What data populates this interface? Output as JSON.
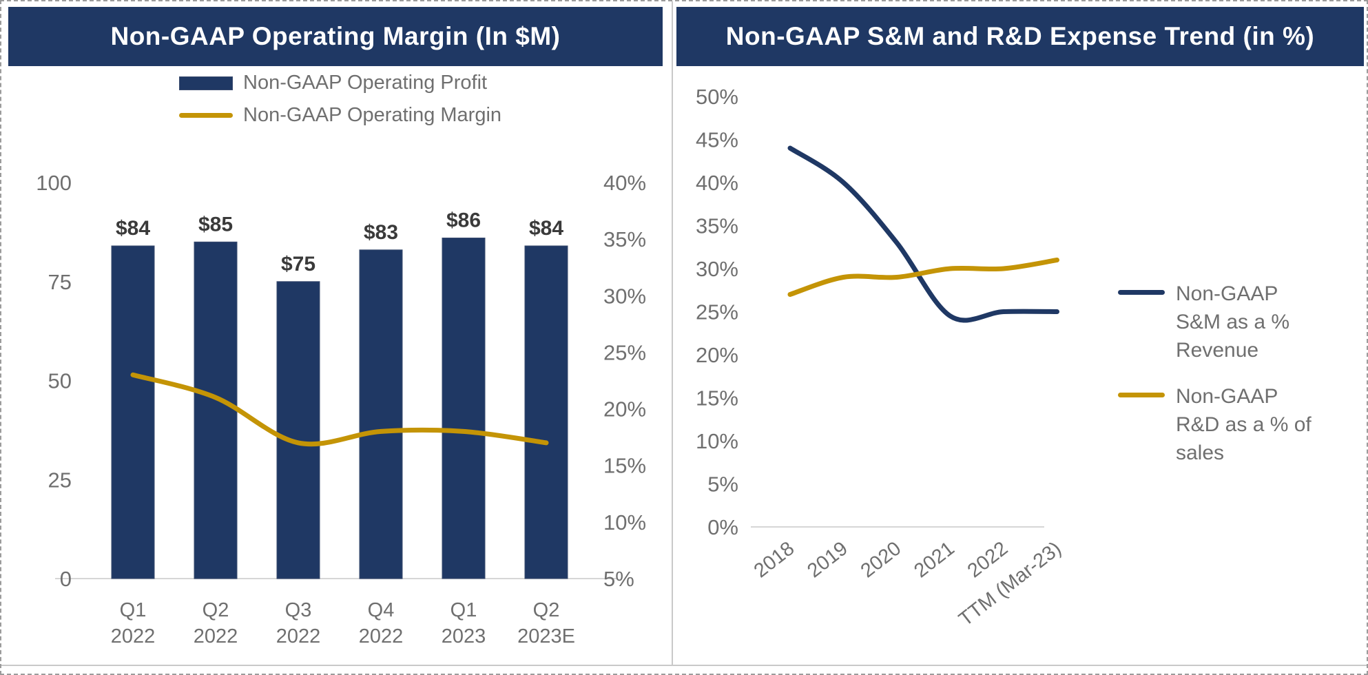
{
  "slide": {
    "left_panel": {
      "title": "Non-GAAP Operating Margin (In $M)",
      "legend": [
        {
          "swatch": "bar",
          "label": "Non-GAAP Operating Profit"
        },
        {
          "swatch": "line",
          "label": "Non-GAAP Operating Margin"
        }
      ]
    },
    "right_panel": {
      "title": "Non-GAAP S&M and R&D Expense Trend (in %)",
      "legend": [
        {
          "swatch": "line",
          "label": "Non-GAAP\nS&M as a %\nRevenue"
        },
        {
          "swatch": "line",
          "label": "Non-GAAP\nR&D as a % of\nsales"
        }
      ]
    }
  },
  "colors": {
    "navy": "#1F3864",
    "gold": "#C49406",
    "axis_text": "#6F6F6F",
    "data_label": "#3A3A3A",
    "axis_line": "#D6D6D6",
    "panel_border": "#C9C9C9",
    "title_text": "#FFFFFF"
  },
  "chart_data": [
    {
      "type": "bar",
      "title": "Non-GAAP Operating Margin (In $M)",
      "categories": [
        [
          "Q1",
          "2022"
        ],
        [
          "Q2",
          "2022"
        ],
        [
          "Q3",
          "2022"
        ],
        [
          "Q4",
          "2022"
        ],
        [
          "Q1",
          "2023"
        ],
        [
          "Q2",
          "2023E"
        ]
      ],
      "series": [
        {
          "name": "Non-GAAP Operating Profit",
          "type": "bar",
          "axis": "left",
          "values": [
            84,
            85,
            75,
            83,
            86,
            84
          ],
          "data_labels": [
            "$84",
            "$85",
            "$75",
            "$83",
            "$86",
            "$84"
          ],
          "color": "#1F3864"
        },
        {
          "name": "Non-GAAP Operating Margin",
          "type": "line",
          "axis": "right",
          "values": [
            23,
            21,
            17,
            18,
            18,
            17
          ],
          "unit": "%",
          "color": "#C49406"
        }
      ],
      "left_axis": {
        "range": [
          0,
          100
        ],
        "ticks": [
          0,
          25,
          50,
          75,
          100
        ]
      },
      "right_axis": {
        "range": [
          5,
          40
        ],
        "ticks": [
          5,
          10,
          15,
          20,
          25,
          30,
          35,
          40
        ],
        "suffix": "%"
      },
      "legend_position": "top",
      "grid": false
    },
    {
      "type": "line",
      "title": "Non-GAAP S&M and R&D Expense Trend (in %)",
      "categories": [
        "2018",
        "2019",
        "2020",
        "2021",
        "2022",
        "TTM (Mar-23)"
      ],
      "series": [
        {
          "name": "Non-GAAP S&M as a % Revenue",
          "values": [
            44,
            40,
            33,
            24.5,
            25,
            25
          ],
          "color": "#1F3864"
        },
        {
          "name": "Non-GAAP R&D as a % of sales",
          "values": [
            27,
            29,
            29,
            30,
            30,
            31
          ],
          "color": "#C49406"
        }
      ],
      "y_axis": {
        "range": [
          0,
          50
        ],
        "ticks": [
          0,
          5,
          10,
          15,
          20,
          25,
          30,
          35,
          40,
          45,
          50
        ],
        "suffix": "%"
      },
      "legend_position": "right",
      "grid": false
    }
  ]
}
